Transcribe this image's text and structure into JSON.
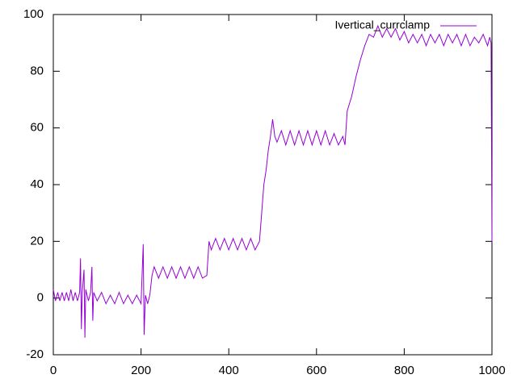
{
  "chart_data": {
    "type": "line",
    "x": [
      0,
      5,
      10,
      15,
      20,
      25,
      30,
      35,
      40,
      45,
      50,
      55,
      60,
      62,
      64,
      66,
      70,
      72,
      74,
      80,
      85,
      88,
      90,
      92,
      100,
      110,
      120,
      130,
      140,
      150,
      160,
      170,
      180,
      190,
      200,
      205,
      207,
      210,
      215,
      220,
      225,
      230,
      240,
      250,
      260,
      270,
      280,
      290,
      300,
      310,
      320,
      330,
      340,
      350,
      355,
      360,
      370,
      380,
      390,
      400,
      410,
      420,
      430,
      440,
      450,
      460,
      470,
      475,
      480,
      485,
      490,
      495,
      500,
      505,
      510,
      520,
      530,
      540,
      550,
      560,
      570,
      580,
      590,
      600,
      610,
      620,
      630,
      640,
      650,
      660,
      665,
      670,
      680,
      690,
      700,
      710,
      720,
      730,
      740,
      750,
      760,
      770,
      780,
      790,
      800,
      810,
      820,
      830,
      840,
      850,
      860,
      870,
      880,
      890,
      900,
      910,
      920,
      930,
      940,
      950,
      960,
      970,
      980,
      990,
      995,
      998,
      1000
    ],
    "series": [
      {
        "name": "Ivertical_currclamp",
        "color": "#9400d3",
        "values": [
          3,
          -1,
          2,
          -1,
          2,
          -1,
          2,
          -1,
          3,
          -1,
          2,
          -1,
          2,
          14,
          -11,
          2,
          10,
          -14,
          3,
          -1,
          2,
          11,
          -8,
          2,
          -1,
          2,
          -2,
          1,
          -2,
          2,
          -2,
          1,
          -2,
          1,
          -2,
          19,
          -13,
          1,
          -2,
          1,
          8,
          11,
          7,
          11,
          7,
          11,
          7,
          11,
          7,
          11,
          7,
          11,
          7,
          8,
          20,
          17,
          21,
          17,
          21,
          17,
          21,
          17,
          21,
          17,
          21,
          17,
          20,
          30,
          40,
          45,
          52,
          57,
          63,
          57,
          55,
          59,
          54,
          59,
          54,
          59,
          54,
          59,
          54,
          59,
          54,
          59,
          54,
          58,
          54,
          57,
          54,
          66,
          71,
          78,
          84,
          89,
          93,
          92,
          96,
          92,
          95,
          92,
          95,
          91,
          94,
          90,
          93,
          90,
          93,
          89,
          93,
          90,
          93,
          89,
          93,
          90,
          93,
          89,
          93,
          89,
          92,
          90,
          93,
          89,
          92,
          90,
          20
        ]
      }
    ],
    "xlim": [
      0,
      1000
    ],
    "xticks": [
      0,
      200,
      400,
      600,
      800,
      1000
    ],
    "ylim": [
      -20,
      100
    ],
    "yticks": [
      -20,
      0,
      20,
      40,
      60,
      80,
      100
    ],
    "grid": false,
    "legend": "top-right"
  }
}
